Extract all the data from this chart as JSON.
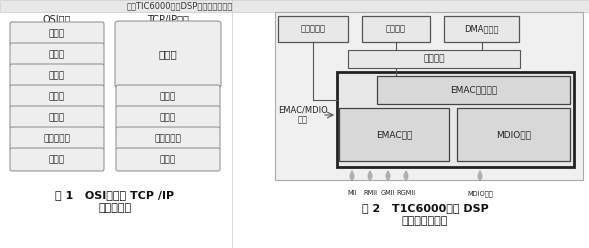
{
  "fig_width": 5.89,
  "fig_height": 2.48,
  "dpi": 100,
  "bg_color": "#ffffff",
  "top_title": "基于TIC6000系列DSP的网络开发研究",
  "osi_title": "OSI模型",
  "tcp_title": "TCP/IP模型",
  "osi_layers": [
    "应用层",
    "表示层",
    "会话层",
    "传输层",
    "网络层",
    "数据链路层",
    "物理层"
  ],
  "tcp_top": "应用层",
  "tcp_bottom": [
    "传输层",
    "网络层",
    "数据链路层",
    "物理层"
  ],
  "fig1_caption_line1": "图 1   OSI模型与 TCP /IP",
  "fig1_caption_line2": "模型的对比",
  "fig2_caption_line1": "图 2   T1C6000系列 DSP",
  "fig2_caption_line2": "的网络功能模块",
  "box_top_labels": [
    "中断控制器",
    "配置总线",
    "DMA控制器"
  ],
  "waijia_label": "外设总线",
  "emac_ctrl_label": "EMAC控制模块",
  "emac_label": "EMAC模块",
  "mdio_label": "MDIO模块",
  "emac_mdio_label": "EMAC/MDIO\n中断",
  "bottom_arrow_labels": [
    "MII",
    "RMII",
    "GMII",
    "RGMII",
    "MDIO总线"
  ],
  "box_fill": "#eeeeee",
  "box_edge": "#666666",
  "bold_edge": "#222222",
  "text_color": "#222222",
  "caption_color": "#111111",
  "outer_fill": "#f2f2f2",
  "inner_fill": "#e0e0e0"
}
